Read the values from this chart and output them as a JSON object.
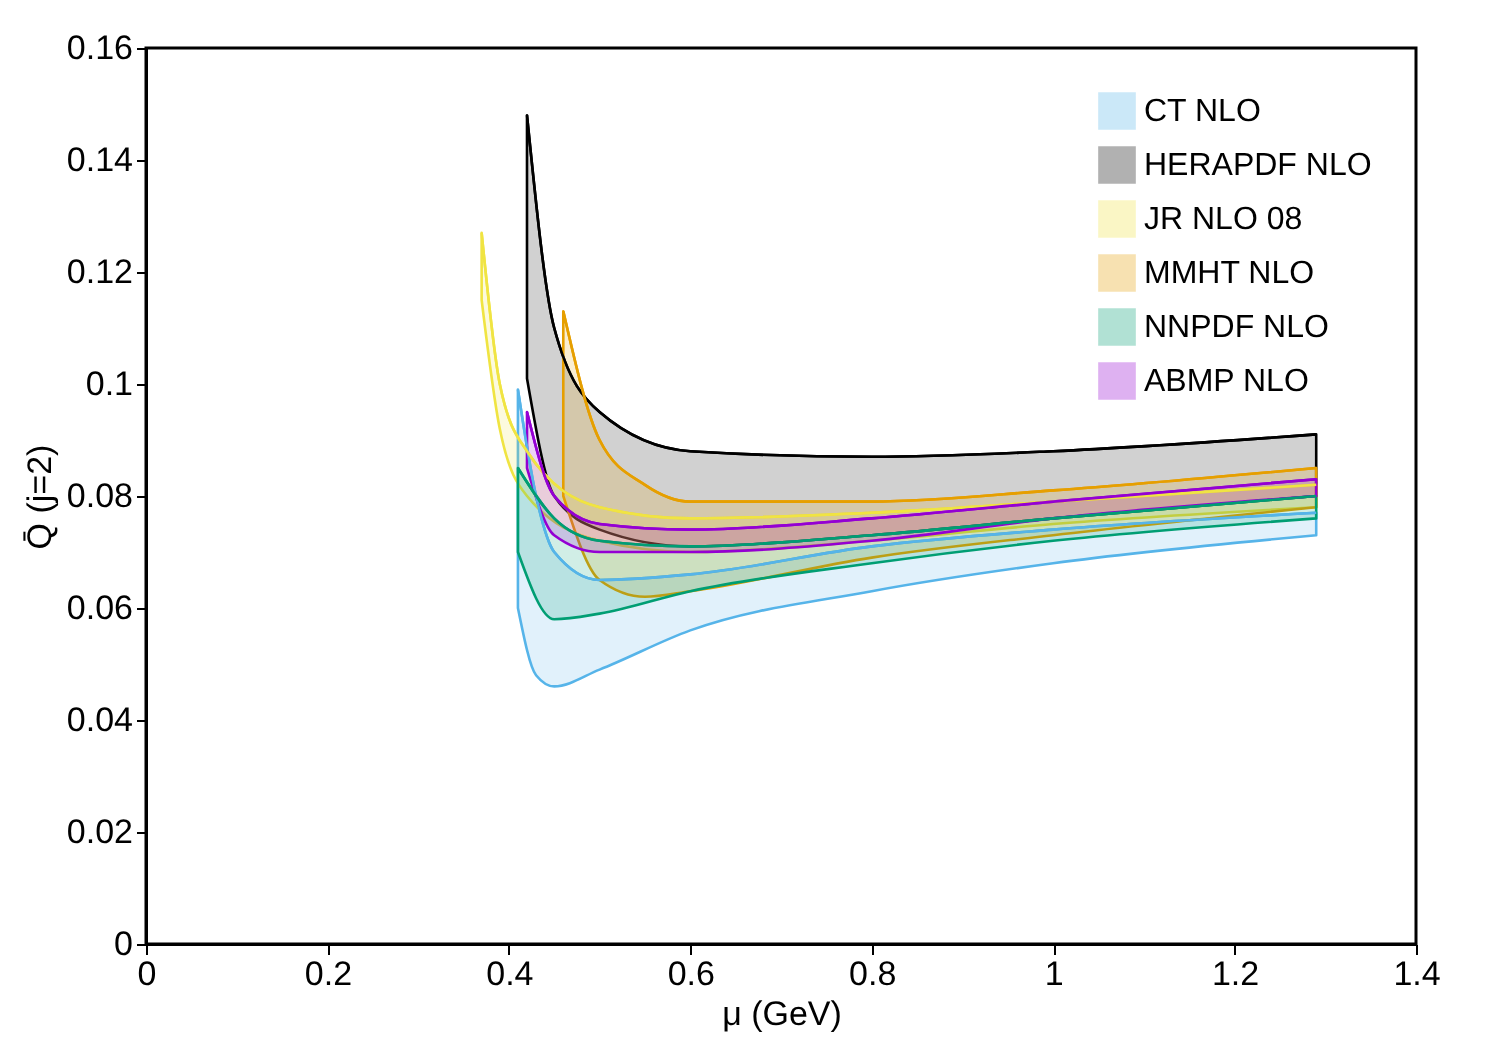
{
  "chart_data": {
    "type": "line",
    "xlabel": "μ (GeV)",
    "ylabel": "Q̄ (j=2)",
    "xlim": [
      0,
      1.4
    ],
    "ylim": [
      0,
      0.16
    ],
    "xticks": [
      0,
      0.2,
      0.4,
      0.6,
      0.8,
      1,
      1.2,
      1.4
    ],
    "yticks": [
      0,
      0.02,
      0.04,
      0.06,
      0.08,
      0.1,
      0.12,
      0.14,
      0.16
    ],
    "grid": false,
    "legend": "top right",
    "series": [
      {
        "name": "CT NLO",
        "color": "#56b4e9",
        "x": [
          0.41,
          0.43,
          0.45,
          0.5,
          0.6,
          0.8,
          1.0,
          1.29
        ],
        "values": [
          0.099,
          0.08,
          0.07,
          0.065,
          0.066,
          0.071,
          0.074,
          0.077
        ],
        "upper": [
          0.099,
          0.08,
          0.07,
          0.065,
          0.066,
          0.071,
          0.074,
          0.077
        ],
        "lower": [
          0.06,
          0.048,
          0.046,
          0.049,
          0.056,
          0.063,
          0.068,
          0.073
        ]
      },
      {
        "name": "HERAPDF NLO",
        "color": "#000000",
        "x": [
          0.42,
          0.45,
          0.5,
          0.6,
          0.8,
          1.0,
          1.29
        ],
        "values": [
          0.148,
          0.11,
          0.095,
          0.088,
          0.087,
          0.088,
          0.091
        ],
        "upper": [
          0.148,
          0.11,
          0.095,
          0.088,
          0.087,
          0.088,
          0.091
        ],
        "lower": [
          0.101,
          0.08,
          0.074,
          0.071,
          0.073,
          0.076,
          0.08
        ]
      },
      {
        "name": "JR NLO 08",
        "color": "#f0e442",
        "x": [
          0.37,
          0.39,
          0.42,
          0.5,
          0.6,
          0.8,
          1.0,
          1.29
        ],
        "values": [
          0.127,
          0.1,
          0.088,
          0.078,
          0.076,
          0.077,
          0.079,
          0.082
        ],
        "upper": [
          0.127,
          0.1,
          0.088,
          0.078,
          0.076,
          0.077,
          0.079,
          0.082
        ],
        "lower": [
          0.115,
          0.092,
          0.08,
          0.072,
          0.07,
          0.072,
          0.075,
          0.078
        ]
      },
      {
        "name": "MMHT NLO",
        "color": "#e69f00",
        "x": [
          0.46,
          0.5,
          0.55,
          0.6,
          0.8,
          1.0,
          1.29
        ],
        "values": [
          0.113,
          0.09,
          0.082,
          0.079,
          0.079,
          0.081,
          0.085
        ],
        "upper": [
          0.113,
          0.09,
          0.082,
          0.079,
          0.079,
          0.081,
          0.085
        ],
        "lower": [
          0.08,
          0.065,
          0.062,
          0.063,
          0.069,
          0.073,
          0.078
        ]
      },
      {
        "name": "NNPDF NLO",
        "color": "#009e73",
        "x": [
          0.41,
          0.45,
          0.5,
          0.6,
          0.8,
          1.0,
          1.29
        ],
        "values": [
          0.085,
          0.076,
          0.072,
          0.071,
          0.073,
          0.076,
          0.08
        ],
        "upper": [
          0.085,
          0.076,
          0.072,
          0.071,
          0.073,
          0.076,
          0.08
        ],
        "lower": [
          0.07,
          0.058,
          0.059,
          0.063,
          0.068,
          0.072,
          0.076
        ]
      },
      {
        "name": "ABMP NLO",
        "color": "#9400d3",
        "x": [
          0.42,
          0.45,
          0.5,
          0.6,
          0.8,
          1.0,
          1.29
        ],
        "values": [
          0.095,
          0.08,
          0.075,
          0.074,
          0.076,
          0.079,
          0.083
        ],
        "upper": [
          0.095,
          0.08,
          0.075,
          0.074,
          0.076,
          0.079,
          0.083
        ],
        "lower": [
          0.085,
          0.073,
          0.07,
          0.07,
          0.072,
          0.076,
          0.08
        ]
      }
    ]
  }
}
